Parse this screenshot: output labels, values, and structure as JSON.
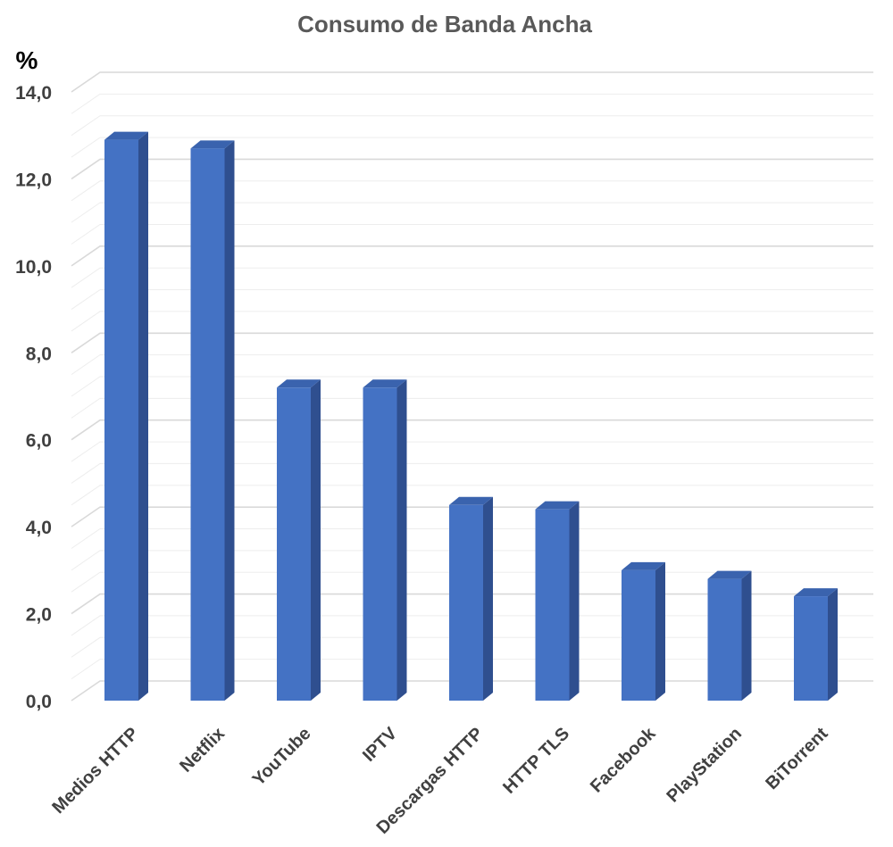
{
  "chart_data": {
    "type": "bar",
    "title": "Consumo de Banda Ancha",
    "ylabel": "%",
    "xlabel": "",
    "categories": [
      "Medios HTTP",
      "Netflix",
      "YouTube",
      "IPTV",
      "Descargas HTTP",
      "HTTP TLS",
      "Facebook",
      "PlayStation",
      "BiTorrent"
    ],
    "values": [
      12.9,
      12.7,
      7.2,
      7.2,
      4.5,
      4.4,
      3.0,
      2.8,
      2.4
    ],
    "yticks": [
      "0,0",
      "2,0",
      "4,0",
      "6,0",
      "8,0",
      "10,0",
      "12,0",
      "14,0"
    ],
    "ylim": [
      0,
      14
    ],
    "grid": true,
    "legend": "none",
    "colors": {
      "bar_front": "#4472C4",
      "bar_side": "#2F4F8F",
      "bar_top": "#3A63AE",
      "grid": "#D9D9D9",
      "grid_minor": "#EDEDED"
    }
  }
}
